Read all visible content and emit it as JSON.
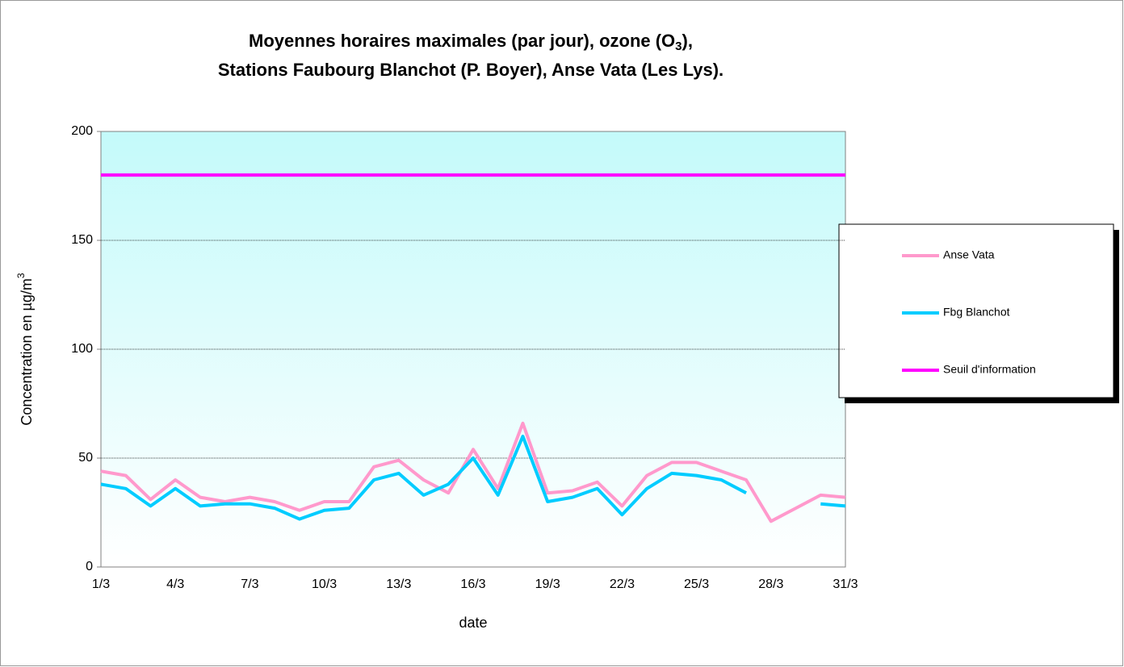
{
  "chart_data": {
    "type": "line",
    "title": {
      "line1": "Moyennes horaires maximales (par jour), ozone (O",
      "line1_subscript": "3",
      "line1_end": "),",
      "line2": "Stations Faubourg Blanchot (P. Boyer), Anse Vata (Les Lys)."
    },
    "xlabel": "date",
    "ylabel": "Concentration en µg/m",
    "ylabel_superscript": "3",
    "categories": [
      "1/3",
      null,
      null,
      "4/3",
      null,
      null,
      "7/3",
      null,
      null,
      "10/3",
      null,
      null,
      "13/3",
      null,
      null,
      "16/3",
      null,
      null,
      "19/3",
      null,
      null,
      "22/3",
      null,
      null,
      "25/3",
      null,
      null,
      "28/3",
      null,
      null,
      "31/3"
    ],
    "series": [
      {
        "name": "Anse Vata",
        "color": "#ff99cc",
        "values": [
          44,
          42,
          31,
          40,
          32,
          30,
          32,
          30,
          26,
          30,
          30,
          46,
          49,
          40,
          34,
          54,
          36,
          66,
          34,
          35,
          39,
          28,
          42,
          48,
          48,
          44,
          40,
          21,
          27,
          33,
          32
        ]
      },
      {
        "name": "Fbg Blanchot",
        "color": "#00ccff",
        "values": [
          38,
          36,
          28,
          36,
          28,
          29,
          29,
          27,
          22,
          26,
          27,
          40,
          43,
          33,
          38,
          50,
          33,
          60,
          30,
          32,
          36,
          24,
          36,
          43,
          42,
          40,
          34,
          null,
          null,
          29,
          28
        ]
      },
      {
        "name": "Seuil d'information",
        "color": "#ff00ff",
        "values": [
          180,
          180,
          180,
          180,
          180,
          180,
          180,
          180,
          180,
          180,
          180,
          180,
          180,
          180,
          180,
          180,
          180,
          180,
          180,
          180,
          180,
          180,
          180,
          180,
          180,
          180,
          180,
          180,
          180,
          180,
          180
        ]
      }
    ],
    "ylim": [
      0,
      200
    ],
    "yticks": [
      0,
      50,
      100,
      150,
      200
    ],
    "grid": true,
    "legend": "right"
  }
}
